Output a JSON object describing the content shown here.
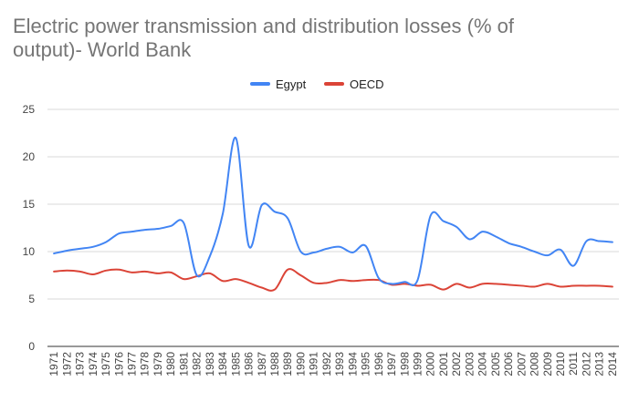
{
  "chart_data": {
    "type": "line",
    "title_lines": [
      "Electric power transmission and distribution losses (% of",
      "output)- World Bank"
    ],
    "xlabel": "",
    "ylabel": "",
    "ylim": [
      0,
      25
    ],
    "yticks": [
      0,
      5,
      10,
      15,
      20,
      25
    ],
    "grid": true,
    "legend_position": "top",
    "x": [
      "1971",
      "1972",
      "1973",
      "1974",
      "1975",
      "1976",
      "1977",
      "1978",
      "1979",
      "1980",
      "1981",
      "1982",
      "1983",
      "1984",
      "1985",
      "1986",
      "1987",
      "1988",
      "1989",
      "1990",
      "1991",
      "1992",
      "1993",
      "1994",
      "1995",
      "1996",
      "1997",
      "1998",
      "1999",
      "2000",
      "2001",
      "2002",
      "2003",
      "2004",
      "2005",
      "2006",
      "2007",
      "2008",
      "2009",
      "2010",
      "2011",
      "2012",
      "2013",
      "2014"
    ],
    "series": [
      {
        "name": "Egypt",
        "color": "#4285f4",
        "values": [
          9.8,
          10.1,
          10.3,
          10.5,
          11.0,
          11.9,
          12.1,
          12.3,
          12.4,
          12.7,
          13.0,
          7.5,
          9.5,
          14.0,
          22.0,
          10.6,
          14.9,
          14.2,
          13.5,
          10.0,
          9.9,
          10.3,
          10.5,
          9.9,
          10.6,
          7.2,
          6.6,
          6.8,
          7.0,
          13.8,
          13.2,
          12.6,
          11.3,
          12.1,
          11.6,
          10.9,
          10.5,
          10.0,
          9.6,
          10.2,
          8.5,
          11.1,
          11.1,
          11.0
        ]
      },
      {
        "name": "OECD",
        "color": "#db4437",
        "values": [
          7.9,
          8.0,
          7.9,
          7.6,
          8.0,
          8.1,
          7.8,
          7.9,
          7.7,
          7.8,
          7.1,
          7.4,
          7.7,
          6.9,
          7.1,
          6.7,
          6.2,
          6.0,
          8.1,
          7.5,
          6.7,
          6.7,
          7.0,
          6.9,
          7.0,
          7.0,
          6.5,
          6.6,
          6.4,
          6.5,
          6.0,
          6.6,
          6.2,
          6.6,
          6.6,
          6.5,
          6.4,
          6.3,
          6.6,
          6.3,
          6.4,
          6.4,
          6.4,
          6.3
        ]
      }
    ]
  }
}
